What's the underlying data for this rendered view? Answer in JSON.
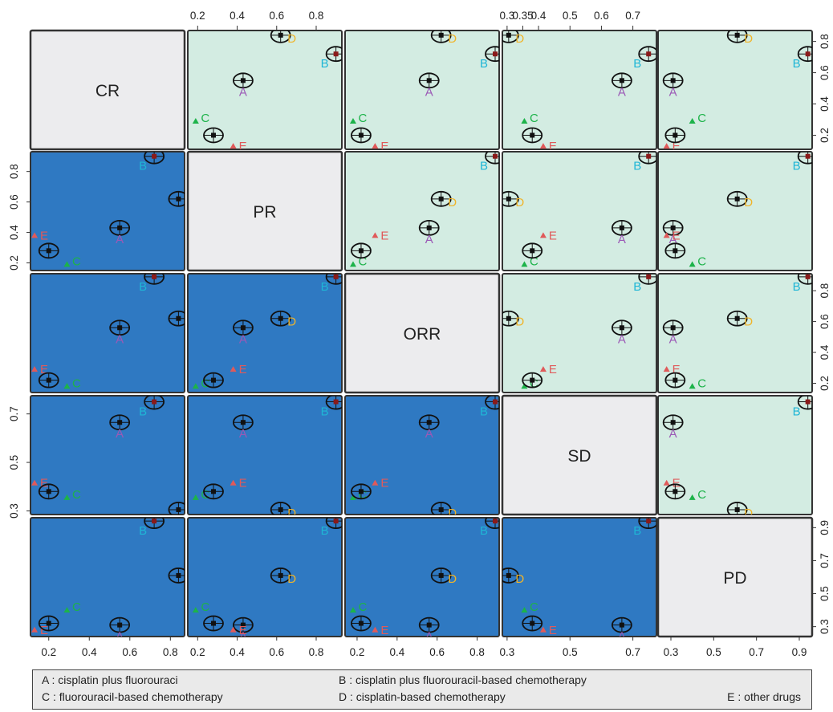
{
  "chart_data": {
    "type": "scatter-matrix",
    "variables": [
      "CR",
      "PR",
      "ORR",
      "SD",
      "PD"
    ],
    "ranges": {
      "CR": [
        0.11,
        0.87
      ],
      "PR": [
        0.15,
        0.93
      ],
      "ORR": [
        0.14,
        0.91
      ],
      "SD": [
        0.285,
        0.775
      ],
      "PD": [
        0.24,
        0.96
      ]
    },
    "ticks": {
      "CR": [
        "0.2",
        "0.4",
        "0.6",
        "0.8"
      ],
      "PR": [
        "0.2",
        "0.4",
        "0.6",
        "0.8"
      ],
      "ORR": [
        "0.2",
        "0.4",
        "0.6",
        "0.8"
      ],
      "SD": [
        "0.3",
        "0.5",
        "0.7"
      ],
      "PD": [
        "0.3",
        "0.5",
        "0.7",
        "0.9"
      ]
    },
    "ticks_top": {
      "PR": [
        "0.2",
        "0.4",
        "0.6",
        "0.8"
      ],
      "SD": [
        "0.3",
        "0.35",
        "0.4",
        "0.5",
        "0.6",
        "0.7"
      ]
    },
    "ticks_top_values": {
      "PR": [
        0.2,
        0.4,
        0.6,
        0.8
      ],
      "SD": [
        0.3,
        0.35,
        0.4,
        0.5,
        0.6,
        0.7
      ]
    },
    "tick_values": {
      "CR": [
        0.2,
        0.4,
        0.6,
        0.8
      ],
      "PR": [
        0.2,
        0.4,
        0.6,
        0.8
      ],
      "ORR": [
        0.2,
        0.4,
        0.6,
        0.8
      ],
      "SD": [
        0.3,
        0.5,
        0.7
      ],
      "PD": [
        0.3,
        0.5,
        0.7,
        0.9
      ]
    },
    "treatments": [
      {
        "id": "A",
        "values": {
          "CR": 0.55,
          "PR": 0.43,
          "ORR": 0.56,
          "SD": 0.665,
          "PD": 0.31
        },
        "ellipse": true
      },
      {
        "id": "B",
        "values": {
          "CR": 0.72,
          "PR": 0.9,
          "ORR": 0.89,
          "SD": 0.75,
          "PD": 0.94
        },
        "ellipse": true
      },
      {
        "id": "C",
        "values": {
          "CR": 0.29,
          "PR": 0.19,
          "ORR": 0.18,
          "SD": 0.355,
          "PD": 0.4
        },
        "ellipse": false
      },
      {
        "id": "D",
        "values": {
          "CR": 0.84,
          "PR": 0.62,
          "ORR": 0.62,
          "SD": 0.305,
          "PD": 0.61
        },
        "ellipse": true
      },
      {
        "id": "E",
        "values": {
          "CR": 0.13,
          "PR": 0.38,
          "ORR": 0.29,
          "SD": 0.415,
          "PD": 0.28
        },
        "ellipse": false
      },
      {
        "id": "",
        "values": {
          "CR": 0.2,
          "PR": 0.28,
          "ORR": 0.22,
          "SD": 0.38,
          "PD": 0.32
        },
        "ellipse": true
      }
    ],
    "colors": {
      "A": "#9b59b6",
      "B": "#1fb6d6",
      "C": "#1db34a",
      "D": "#f0b429",
      "E": "#e05a5a",
      "upper_panel": "#d3ece2",
      "lower_panel": "#2f79c2",
      "diag_panel": "#ececee"
    },
    "legend": [
      {
        "key": "A",
        "text": "A : cisplatin plus fluorouraci"
      },
      {
        "key": "B",
        "text": "B : cisplatin plus fluorouracil-based chemotherapy"
      },
      {
        "key": "C",
        "text": "C : fluorouracil-based chemotherapy"
      },
      {
        "key": "D",
        "text": "D : cisplatin-based chemotherapy"
      },
      {
        "key": "E",
        "text": "E : other drugs"
      }
    ]
  }
}
